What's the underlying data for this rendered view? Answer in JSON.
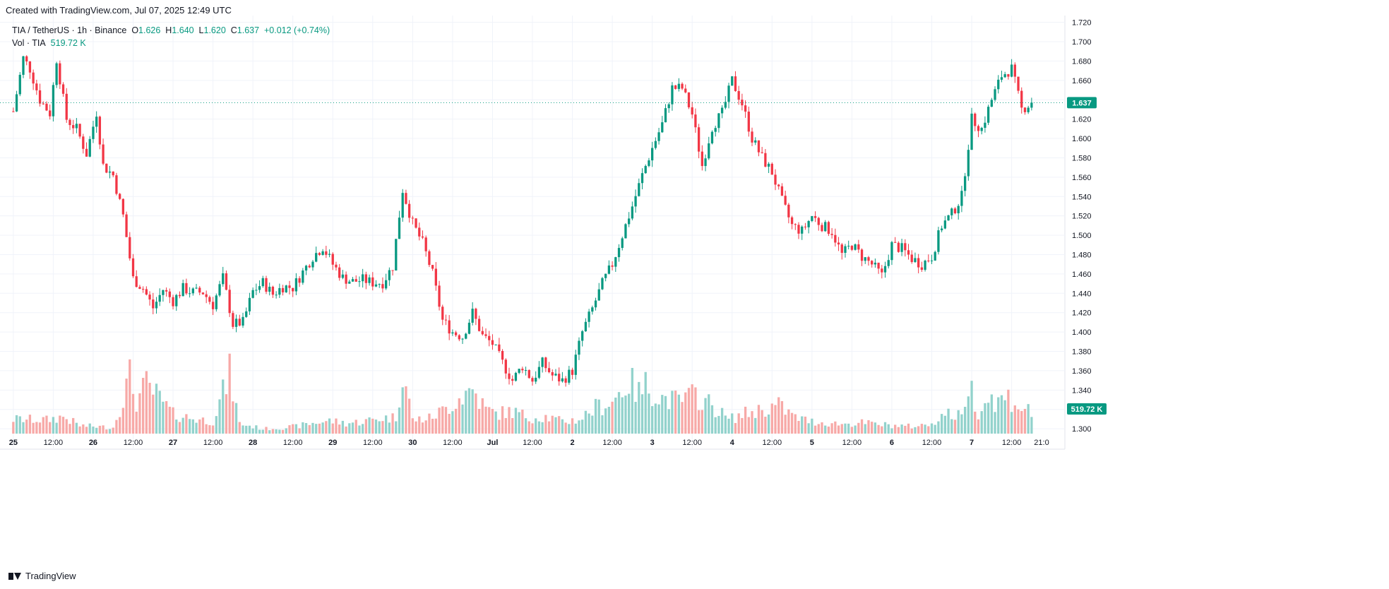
{
  "header": {
    "created": "Created with TradingView.com, Jul 07, 2025 12:49 UTC"
  },
  "legend": {
    "symbol": "TIA / TetherUS · 1h · Binance",
    "o_label": "O",
    "o_value": "1.626",
    "h_label": "H",
    "h_value": "1.640",
    "l_label": "L",
    "l_value": "1.620",
    "c_label": "C",
    "c_value": "1.637",
    "change": "+0.012 (+0.74%)",
    "vol_label": "Vol · TIA",
    "vol_value": "519.72 K"
  },
  "footer": {
    "brand": "TradingView"
  },
  "colors": {
    "up": "#089981",
    "down": "#f23645",
    "up_vol": "#92d2cc",
    "down_vol": "#f7a9a7",
    "grid": "#f0f3fa",
    "axis_text": "#131722"
  },
  "chart_data": {
    "type": "candlestick",
    "timeframe": "1h",
    "price_axis": {
      "ylim": [
        1.295,
        1.727
      ],
      "ticks": [
        "1.720",
        "1.700",
        "1.680",
        "1.660",
        "1.640",
        "1.620",
        "1.600",
        "1.580",
        "1.560",
        "1.540",
        "1.520",
        "1.500",
        "1.480",
        "1.460",
        "1.440",
        "1.420",
        "1.400",
        "1.380",
        "1.360",
        "1.340",
        "1.320",
        "1.300"
      ]
    },
    "time_axis": {
      "range_hours": [
        -4,
        316
      ],
      "labels": [
        {
          "t": 0,
          "label": "25"
        },
        {
          "t": 12,
          "label": "12:00"
        },
        {
          "t": 24,
          "label": "26"
        },
        {
          "t": 36,
          "label": "12:00"
        },
        {
          "t": 48,
          "label": "27"
        },
        {
          "t": 60,
          "label": "12:00"
        },
        {
          "t": 72,
          "label": "28"
        },
        {
          "t": 84,
          "label": "12:00"
        },
        {
          "t": 96,
          "label": "29"
        },
        {
          "t": 108,
          "label": "12:00"
        },
        {
          "t": 120,
          "label": "30"
        },
        {
          "t": 132,
          "label": "12:00"
        },
        {
          "t": 144,
          "label": "Jul"
        },
        {
          "t": 156,
          "label": "12:00"
        },
        {
          "t": 168,
          "label": "2"
        },
        {
          "t": 180,
          "label": "12:00"
        },
        {
          "t": 192,
          "label": "3"
        },
        {
          "t": 204,
          "label": "12:00"
        },
        {
          "t": 216,
          "label": "4"
        },
        {
          "t": 228,
          "label": "12:00"
        },
        {
          "t": 240,
          "label": "5"
        },
        {
          "t": 252,
          "label": "12:00"
        },
        {
          "t": 264,
          "label": "6"
        },
        {
          "t": 276,
          "label": "12:00"
        },
        {
          "t": 288,
          "label": "7"
        },
        {
          "t": 300,
          "label": "12:00"
        },
        {
          "t": 309,
          "label": "21:0"
        }
      ]
    },
    "last_price": 1.637,
    "last_price_label": "1.637",
    "last_volume_label": "519.72 K",
    "volume_max_k": 2000,
    "price_path": [
      [
        0,
        1.628
      ],
      [
        3,
        1.683
      ],
      [
        5,
        1.672
      ],
      [
        8,
        1.64
      ],
      [
        11,
        1.626
      ],
      [
        13,
        1.682
      ],
      [
        16,
        1.62
      ],
      [
        19,
        1.61
      ],
      [
        22,
        1.584
      ],
      [
        25,
        1.627
      ],
      [
        27,
        1.572
      ],
      [
        30,
        1.562
      ],
      [
        33,
        1.52
      ],
      [
        36,
        1.455
      ],
      [
        39,
        1.445
      ],
      [
        42,
        1.425
      ],
      [
        45,
        1.444
      ],
      [
        48,
        1.432
      ],
      [
        51,
        1.445
      ],
      [
        54,
        1.441
      ],
      [
        57,
        1.441
      ],
      [
        60,
        1.428
      ],
      [
        63,
        1.456
      ],
      [
        66,
        1.408
      ],
      [
        69,
        1.41
      ],
      [
        72,
        1.442
      ],
      [
        75,
        1.451
      ],
      [
        78,
        1.439
      ],
      [
        81,
        1.447
      ],
      [
        84,
        1.446
      ],
      [
        87,
        1.462
      ],
      [
        90,
        1.478
      ],
      [
        93,
        1.488
      ],
      [
        96,
        1.47
      ],
      [
        99,
        1.456
      ],
      [
        102,
        1.452
      ],
      [
        105,
        1.454
      ],
      [
        108,
        1.451
      ],
      [
        111,
        1.451
      ],
      [
        114,
        1.468
      ],
      [
        117,
        1.547
      ],
      [
        120,
        1.512
      ],
      [
        123,
        1.492
      ],
      [
        126,
        1.46
      ],
      [
        129,
        1.412
      ],
      [
        132,
        1.4
      ],
      [
        135,
        1.395
      ],
      [
        138,
        1.42
      ],
      [
        141,
        1.396
      ],
      [
        144,
        1.388
      ],
      [
        147,
        1.368
      ],
      [
        150,
        1.35
      ],
      [
        153,
        1.365
      ],
      [
        156,
        1.35
      ],
      [
        159,
        1.368
      ],
      [
        162,
        1.355
      ],
      [
        165,
        1.35
      ],
      [
        168,
        1.36
      ],
      [
        171,
        1.4
      ],
      [
        174,
        1.424
      ],
      [
        177,
        1.45
      ],
      [
        180,
        1.47
      ],
      [
        183,
        1.5
      ],
      [
        186,
        1.53
      ],
      [
        189,
        1.562
      ],
      [
        192,
        1.59
      ],
      [
        195,
        1.615
      ],
      [
        198,
        1.652
      ],
      [
        201,
        1.652
      ],
      [
        204,
        1.625
      ],
      [
        207,
        1.572
      ],
      [
        210,
        1.612
      ],
      [
        213,
        1.626
      ],
      [
        216,
        1.66
      ],
      [
        219,
        1.636
      ],
      [
        222,
        1.6
      ],
      [
        225,
        1.58
      ],
      [
        228,
        1.565
      ],
      [
        231,
        1.535
      ],
      [
        234,
        1.51
      ],
      [
        237,
        1.504
      ],
      [
        240,
        1.52
      ],
      [
        243,
        1.51
      ],
      [
        246,
        1.504
      ],
      [
        249,
        1.48
      ],
      [
        252,
        1.49
      ],
      [
        255,
        1.478
      ],
      [
        258,
        1.47
      ],
      [
        261,
        1.458
      ],
      [
        264,
        1.49
      ],
      [
        267,
        1.486
      ],
      [
        270,
        1.476
      ],
      [
        273,
        1.47
      ],
      [
        276,
        1.478
      ],
      [
        279,
        1.51
      ],
      [
        282,
        1.522
      ],
      [
        285,
        1.54
      ],
      [
        288,
        1.62
      ],
      [
        291,
        1.61
      ],
      [
        294,
        1.64
      ],
      [
        297,
        1.665
      ],
      [
        300,
        1.672
      ],
      [
        303,
        1.63
      ],
      [
        306,
        1.637
      ]
    ],
    "volume_path": [
      [
        0,
        360
      ],
      [
        10,
        340
      ],
      [
        15,
        420
      ],
      [
        20,
        200
      ],
      [
        30,
        150
      ],
      [
        35,
        1400
      ],
      [
        37,
        800
      ],
      [
        40,
        1200
      ],
      [
        43,
        950
      ],
      [
        48,
        480
      ],
      [
        55,
        360
      ],
      [
        60,
        310
      ],
      [
        65,
        1480
      ],
      [
        68,
        250
      ],
      [
        75,
        120
      ],
      [
        80,
        140
      ],
      [
        85,
        180
      ],
      [
        90,
        260
      ],
      [
        95,
        320
      ],
      [
        100,
        260
      ],
      [
        105,
        300
      ],
      [
        110,
        380
      ],
      [
        115,
        400
      ],
      [
        117,
        1600
      ],
      [
        120,
        340
      ],
      [
        125,
        380
      ],
      [
        130,
        620
      ],
      [
        135,
        950
      ],
      [
        138,
        1100
      ],
      [
        142,
        600
      ],
      [
        145,
        500
      ],
      [
        150,
        550
      ],
      [
        155,
        400
      ],
      [
        160,
        420
      ],
      [
        165,
        300
      ],
      [
        170,
        350
      ],
      [
        175,
        650
      ],
      [
        180,
        800
      ],
      [
        185,
        1300
      ],
      [
        188,
        1000
      ],
      [
        190,
        1200
      ],
      [
        195,
        880
      ],
      [
        200,
        800
      ],
      [
        205,
        960
      ],
      [
        210,
        700
      ],
      [
        215,
        350
      ],
      [
        220,
        500
      ],
      [
        225,
        600
      ],
      [
        230,
        700
      ],
      [
        235,
        400
      ],
      [
        240,
        300
      ],
      [
        245,
        260
      ],
      [
        250,
        240
      ],
      [
        255,
        270
      ],
      [
        260,
        230
      ],
      [
        265,
        200
      ],
      [
        270,
        180
      ],
      [
        275,
        220
      ],
      [
        280,
        500
      ],
      [
        285,
        420
      ],
      [
        287,
        1300
      ],
      [
        290,
        560
      ],
      [
        293,
        900
      ],
      [
        296,
        800
      ],
      [
        299,
        900
      ],
      [
        302,
        700
      ],
      [
        306,
        519.72
      ]
    ]
  }
}
